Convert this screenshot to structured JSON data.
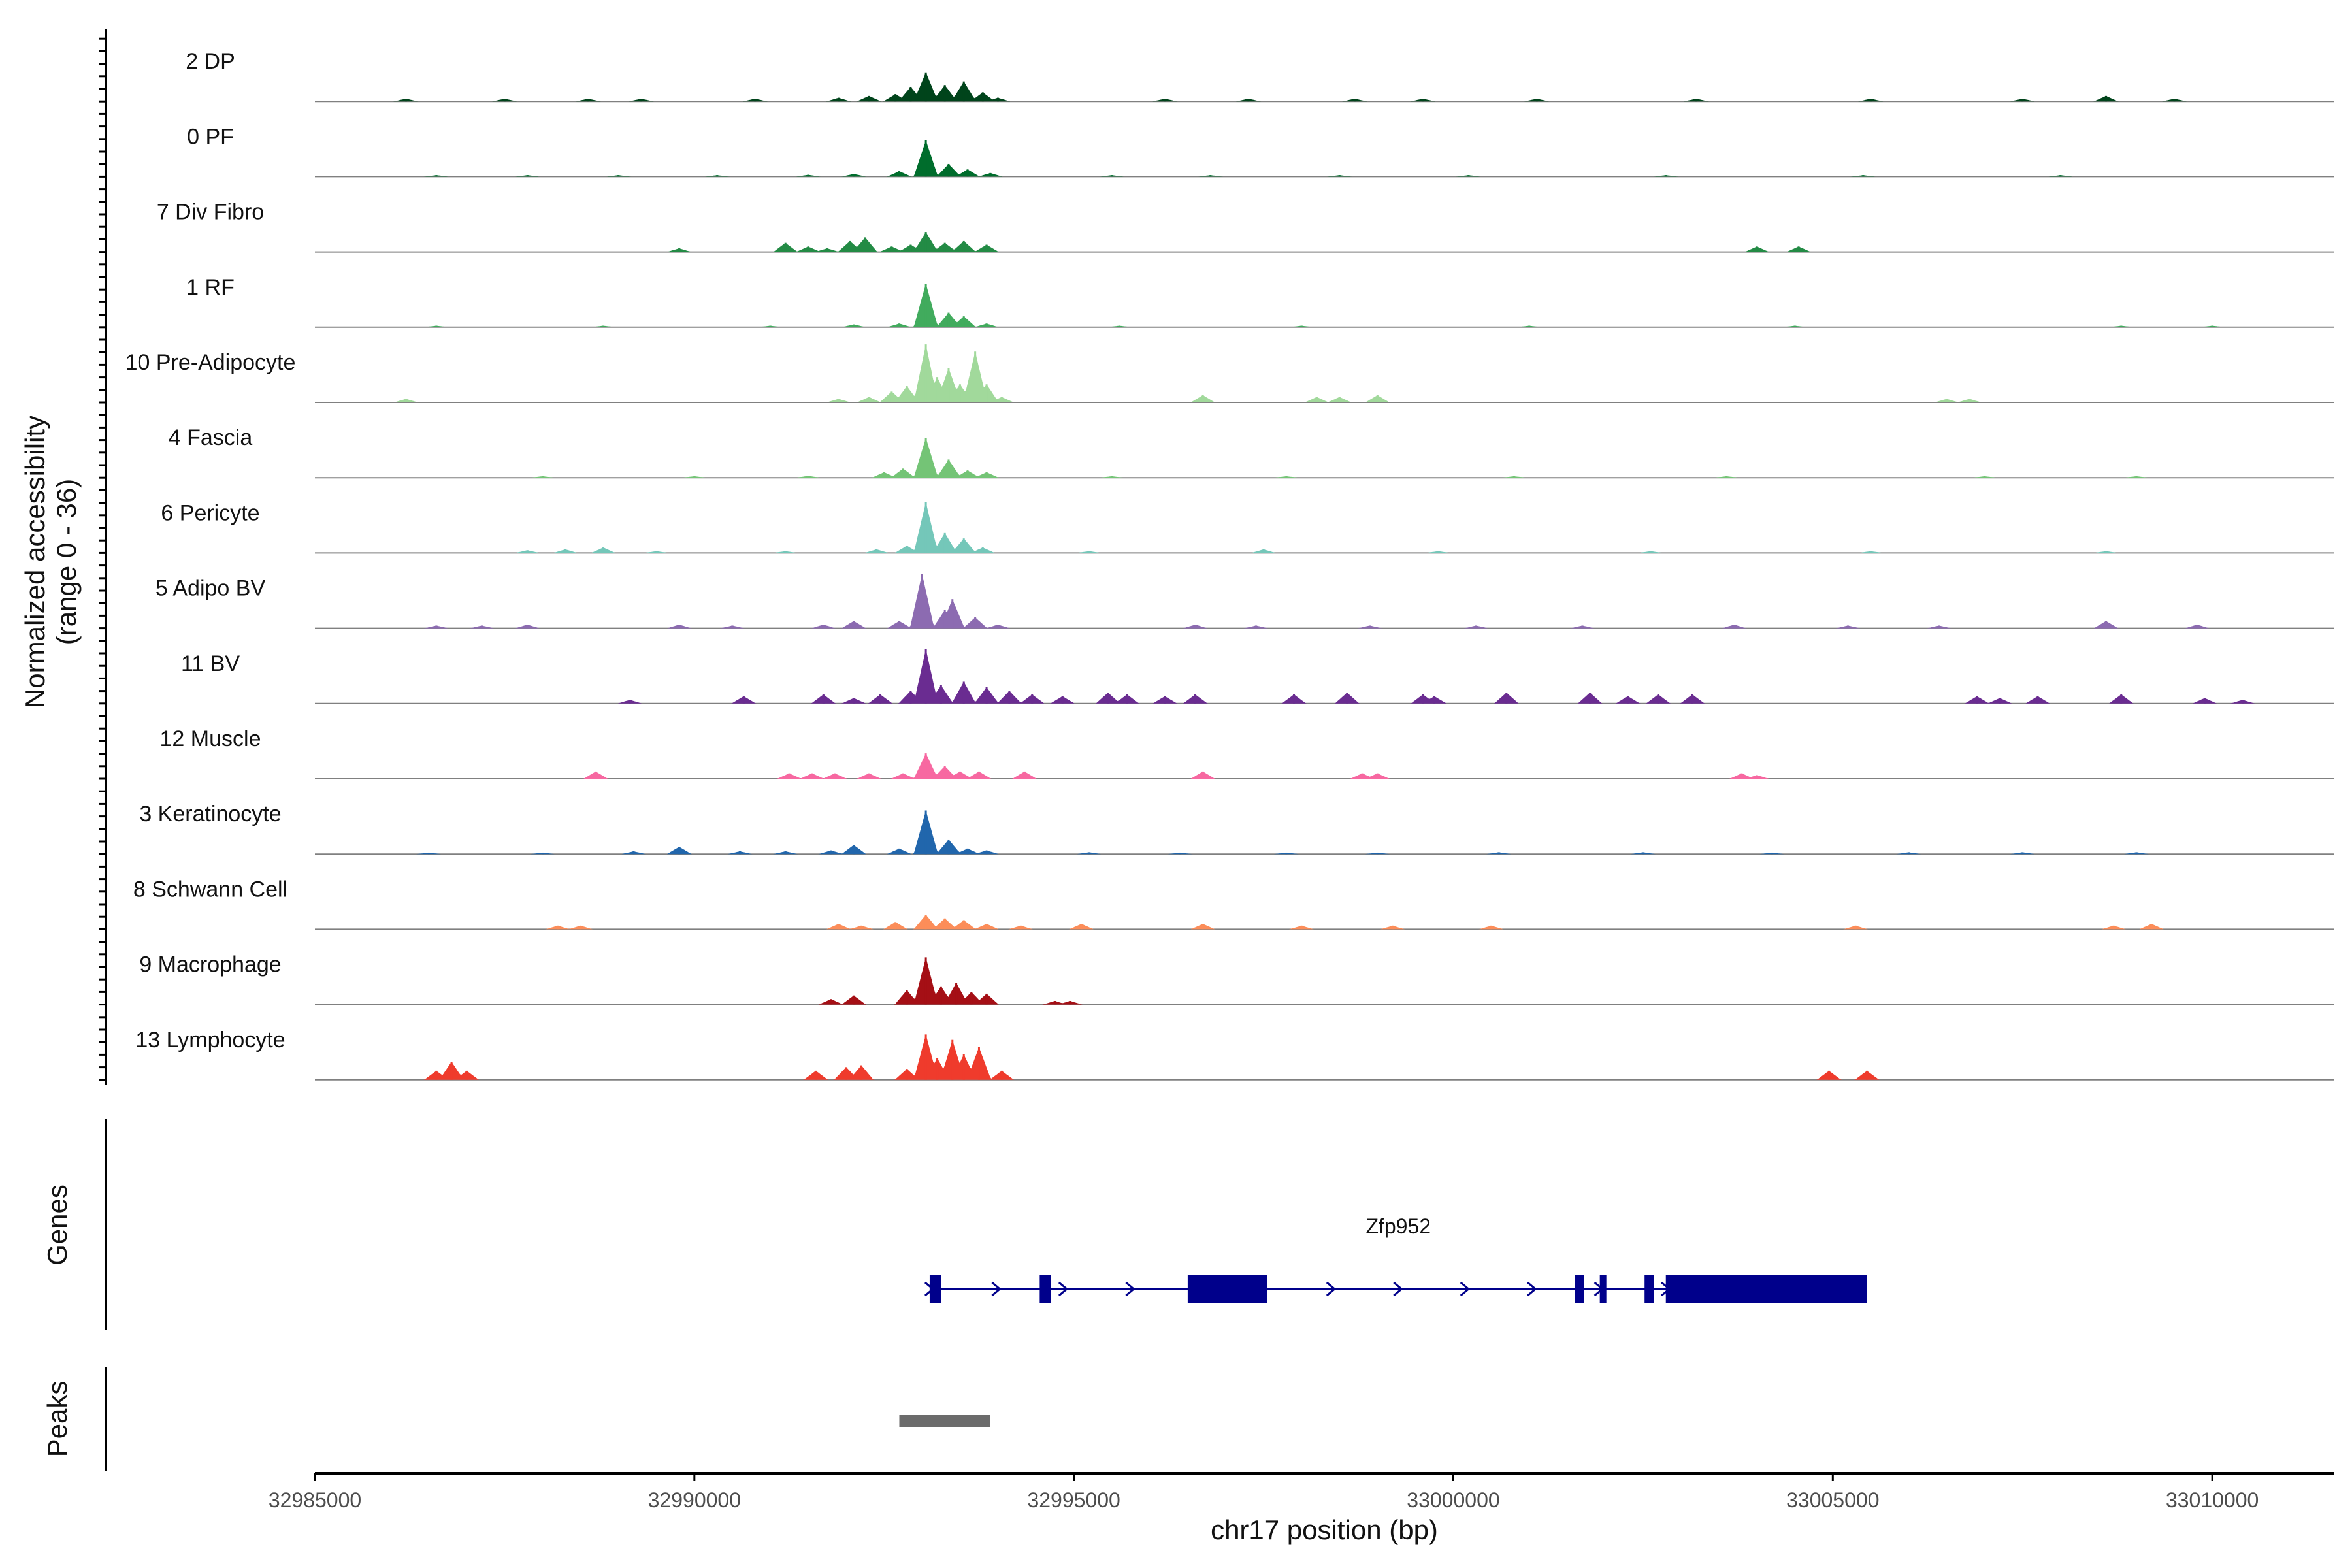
{
  "chart_data": {
    "type": "area",
    "title": "",
    "ylabel": "Normalized accessibility",
    "ylabel_range": "(range 0 - 36)",
    "xlabel": "chr17 position (bp)",
    "xlim": [
      32985000,
      33011600
    ],
    "ylim": [
      0,
      36
    ],
    "xticks": [
      32985000,
      32990000,
      32995000,
      33000000,
      33005000,
      33010000
    ],
    "xtick_labels": [
      "32985000",
      "32990000",
      "32995000",
      "33000000",
      "33005000",
      "33010000"
    ],
    "tracks": [
      {
        "name": "2 DP",
        "color": "#00441b",
        "peaks": [
          [
            32986200,
            1.5
          ],
          [
            32987500,
            1.5
          ],
          [
            32988600,
            1.5
          ],
          [
            32989300,
            1.5
          ],
          [
            32990800,
            1.5
          ],
          [
            32991900,
            2
          ],
          [
            32992300,
            3
          ],
          [
            32992650,
            4
          ],
          [
            32992850,
            8
          ],
          [
            32993050,
            16
          ],
          [
            32993300,
            9
          ],
          [
            32993550,
            11
          ],
          [
            32993800,
            5
          ],
          [
            32994000,
            2
          ],
          [
            32996200,
            1.5
          ],
          [
            32997300,
            1.5
          ],
          [
            32998700,
            1.5
          ],
          [
            32999600,
            1.5
          ],
          [
            33001100,
            1.5
          ],
          [
            33003200,
            1.5
          ],
          [
            33005500,
            1.5
          ],
          [
            33007500,
            1.5
          ],
          [
            33008600,
            3
          ],
          [
            33009500,
            1.5
          ]
        ]
      },
      {
        "name": "0 PF",
        "color": "#006d2c",
        "peaks": [
          [
            32986600,
            0.8
          ],
          [
            32987800,
            0.8
          ],
          [
            32989000,
            0.8
          ],
          [
            32990300,
            0.8
          ],
          [
            32991500,
            1
          ],
          [
            32992100,
            1.5
          ],
          [
            32992700,
            3
          ],
          [
            32993050,
            20
          ],
          [
            32993350,
            7
          ],
          [
            32993600,
            4
          ],
          [
            32993900,
            2
          ],
          [
            32995500,
            0.8
          ],
          [
            32996800,
            0.8
          ],
          [
            32998500,
            0.8
          ],
          [
            33000200,
            0.8
          ],
          [
            33002800,
            0.8
          ],
          [
            33005400,
            0.8
          ],
          [
            33008000,
            0.8
          ]
        ]
      },
      {
        "name": "7 Div Fibro",
        "color": "#238b45",
        "peaks": [
          [
            32989800,
            2
          ],
          [
            32991200,
            5
          ],
          [
            32991500,
            3
          ],
          [
            32991750,
            2
          ],
          [
            32992050,
            6
          ],
          [
            32992250,
            8
          ],
          [
            32992600,
            3
          ],
          [
            32992850,
            4
          ],
          [
            32993050,
            11
          ],
          [
            32993300,
            5
          ],
          [
            32993550,
            6
          ],
          [
            32993850,
            4
          ],
          [
            33004000,
            3
          ],
          [
            33004550,
            3
          ]
        ]
      },
      {
        "name": "1 RF",
        "color": "#41ab5d",
        "peaks": [
          [
            32986600,
            0.8
          ],
          [
            32988800,
            0.8
          ],
          [
            32991000,
            0.8
          ],
          [
            32992100,
            1.5
          ],
          [
            32992700,
            2
          ],
          [
            32993050,
            24
          ],
          [
            32993350,
            8
          ],
          [
            32993550,
            6
          ],
          [
            32993850,
            2
          ],
          [
            32995600,
            0.8
          ],
          [
            32998000,
            0.8
          ],
          [
            33001000,
            0.8
          ],
          [
            33004500,
            0.8
          ],
          [
            33008800,
            0.8
          ],
          [
            33010000,
            0.8
          ]
        ]
      },
      {
        "name": "10 Pre-Adipocyte",
        "color": "#a1d99b",
        "peaks": [
          [
            32986200,
            2
          ],
          [
            32991900,
            2
          ],
          [
            32992300,
            3
          ],
          [
            32992600,
            6
          ],
          [
            32992800,
            9
          ],
          [
            32992950,
            5
          ],
          [
            32993050,
            32
          ],
          [
            32993200,
            14
          ],
          [
            32993350,
            19
          ],
          [
            32993500,
            10
          ],
          [
            32993700,
            28
          ],
          [
            32993850,
            10
          ],
          [
            32994050,
            3
          ],
          [
            32996700,
            4
          ],
          [
            32998200,
            3
          ],
          [
            32998500,
            3
          ],
          [
            32999000,
            4
          ],
          [
            33006500,
            2
          ],
          [
            33006800,
            2
          ]
        ]
      },
      {
        "name": "4 Fascia",
        "color": "#74c476",
        "peaks": [
          [
            32988000,
            0.8
          ],
          [
            32990000,
            0.8
          ],
          [
            32991500,
            1
          ],
          [
            32992500,
            3
          ],
          [
            32992750,
            5
          ],
          [
            32993050,
            22
          ],
          [
            32993350,
            10
          ],
          [
            32993600,
            4
          ],
          [
            32993850,
            3
          ],
          [
            32995500,
            0.8
          ],
          [
            32997800,
            0.8
          ],
          [
            33000800,
            0.8
          ],
          [
            33003600,
            0.8
          ],
          [
            33007000,
            0.8
          ],
          [
            33009000,
            0.8
          ]
        ]
      },
      {
        "name": "6 Pericyte",
        "color": "#74c7b9",
        "peaks": [
          [
            32987800,
            1.5
          ],
          [
            32988300,
            2
          ],
          [
            32988800,
            3
          ],
          [
            32989500,
            1
          ],
          [
            32991200,
            1
          ],
          [
            32992400,
            2
          ],
          [
            32992800,
            4
          ],
          [
            32993050,
            28
          ],
          [
            32993300,
            11
          ],
          [
            32993550,
            8
          ],
          [
            32993800,
            3
          ],
          [
            32995200,
            1
          ],
          [
            32997500,
            2
          ],
          [
            32999800,
            1
          ],
          [
            33002600,
            1
          ],
          [
            33005500,
            1
          ],
          [
            33008600,
            1
          ]
        ]
      },
      {
        "name": "5 Adipo BV",
        "color": "#8c6bb1",
        "peaks": [
          [
            32986600,
            1.5
          ],
          [
            32987200,
            1.5
          ],
          [
            32987800,
            2
          ],
          [
            32989800,
            2
          ],
          [
            32990500,
            1.5
          ],
          [
            32991700,
            2
          ],
          [
            32992100,
            4
          ],
          [
            32992700,
            4
          ],
          [
            32993000,
            30
          ],
          [
            32993300,
            10
          ],
          [
            32993400,
            16
          ],
          [
            32993700,
            6
          ],
          [
            32994000,
            2
          ],
          [
            32996600,
            2
          ],
          [
            32997400,
            1.5
          ],
          [
            32998900,
            1.5
          ],
          [
            33000300,
            1.5
          ],
          [
            33001700,
            1.5
          ],
          [
            33003700,
            2
          ],
          [
            33005200,
            1.5
          ],
          [
            33006400,
            1.5
          ],
          [
            33008600,
            4
          ],
          [
            33009800,
            2
          ]
        ]
      },
      {
        "name": "11 BV",
        "color": "#6a2c91",
        "peaks": [
          [
            32989150,
            2
          ],
          [
            32990650,
            4
          ],
          [
            32991700,
            5
          ],
          [
            32992100,
            3
          ],
          [
            32992450,
            5
          ],
          [
            32992850,
            7
          ],
          [
            32993050,
            30
          ],
          [
            32993250,
            10
          ],
          [
            32993550,
            12
          ],
          [
            32993850,
            9
          ],
          [
            32994150,
            7
          ],
          [
            32994450,
            5
          ],
          [
            32994850,
            4
          ],
          [
            32995450,
            6
          ],
          [
            32995700,
            5
          ],
          [
            32996200,
            4
          ],
          [
            32996600,
            5
          ],
          [
            32997900,
            5
          ],
          [
            32998600,
            6
          ],
          [
            32999600,
            5
          ],
          [
            32999750,
            4
          ],
          [
            33000700,
            6
          ],
          [
            33001800,
            6
          ],
          [
            33002300,
            4
          ],
          [
            33002700,
            5
          ],
          [
            33003150,
            5
          ],
          [
            33006900,
            4
          ],
          [
            33007200,
            3
          ],
          [
            33007700,
            4
          ],
          [
            33008800,
            5
          ],
          [
            33009900,
            3
          ],
          [
            33010400,
            2
          ]
        ]
      },
      {
        "name": "12 Muscle",
        "color": "#f768a1",
        "peaks": [
          [
            32988700,
            4
          ],
          [
            32991250,
            3
          ],
          [
            32991550,
            3
          ],
          [
            32991850,
            3
          ],
          [
            32992300,
            3
          ],
          [
            32992750,
            3
          ],
          [
            32993050,
            14
          ],
          [
            32993300,
            7
          ],
          [
            32993500,
            4
          ],
          [
            32993750,
            4
          ],
          [
            32994350,
            4
          ],
          [
            32996700,
            4
          ],
          [
            32998800,
            3
          ],
          [
            32999000,
            3
          ],
          [
            33003800,
            3
          ],
          [
            33004000,
            2
          ]
        ]
      },
      {
        "name": "3 Keratinocyte",
        "color": "#2166ac",
        "peaks": [
          [
            32986500,
            0.8
          ],
          [
            32988000,
            0.8
          ],
          [
            32989200,
            1.5
          ],
          [
            32989800,
            4
          ],
          [
            32990600,
            1.5
          ],
          [
            32991200,
            1.5
          ],
          [
            32991800,
            2
          ],
          [
            32992100,
            5
          ],
          [
            32992700,
            3
          ],
          [
            32993050,
            24
          ],
          [
            32993350,
            8
          ],
          [
            32993600,
            3
          ],
          [
            32993850,
            2
          ],
          [
            32995200,
            1
          ],
          [
            32996400,
            0.8
          ],
          [
            32997800,
            0.8
          ],
          [
            32999000,
            0.8
          ],
          [
            33000600,
            1
          ],
          [
            33002500,
            1
          ],
          [
            33004200,
            0.8
          ],
          [
            33006000,
            1
          ],
          [
            33007500,
            1
          ],
          [
            33009000,
            1
          ]
        ]
      },
      {
        "name": "8 Schwann Cell",
        "color": "#fc8d59",
        "peaks": [
          [
            32988200,
            2
          ],
          [
            32988500,
            2
          ],
          [
            32991900,
            3
          ],
          [
            32992200,
            2
          ],
          [
            32992650,
            4
          ],
          [
            32993050,
            8
          ],
          [
            32993300,
            6
          ],
          [
            32993550,
            5
          ],
          [
            32993850,
            3
          ],
          [
            32994300,
            2
          ],
          [
            32995100,
            3
          ],
          [
            32996700,
            3
          ],
          [
            32998000,
            2
          ],
          [
            32999200,
            2
          ],
          [
            33000500,
            2
          ],
          [
            33005300,
            2
          ],
          [
            33008700,
            2
          ],
          [
            33009200,
            3
          ]
        ]
      },
      {
        "name": "9 Macrophage",
        "color": "#a50f15",
        "peaks": [
          [
            32991800,
            3
          ],
          [
            32992100,
            5
          ],
          [
            32992800,
            8
          ],
          [
            32993050,
            26
          ],
          [
            32993250,
            10
          ],
          [
            32993450,
            12
          ],
          [
            32993650,
            7
          ],
          [
            32993850,
            6
          ],
          [
            32994750,
            2
          ],
          [
            32994950,
            2
          ]
        ]
      },
      {
        "name": "13 Lymphocyte",
        "color": "#ef3b2c",
        "peaks": [
          [
            32986600,
            5
          ],
          [
            32986800,
            10
          ],
          [
            32987000,
            5
          ],
          [
            32991600,
            5
          ],
          [
            32992000,
            7
          ],
          [
            32992200,
            8
          ],
          [
            32992800,
            6
          ],
          [
            32993050,
            25
          ],
          [
            32993200,
            12
          ],
          [
            32993400,
            22
          ],
          [
            32993550,
            14
          ],
          [
            32993750,
            18
          ],
          [
            32994050,
            5
          ],
          [
            33004950,
            5
          ],
          [
            33005450,
            5
          ]
        ]
      }
    ],
    "genes": [
      {
        "name": "Zfp952",
        "strand": "+",
        "start": 32993100,
        "end": 33005450,
        "exons": [
          [
            32993100,
            32993250
          ],
          [
            32994550,
            32994700
          ],
          [
            32996500,
            32997550
          ],
          [
            33001600,
            33001720
          ],
          [
            33001930,
            33002000
          ],
          [
            33002520,
            33002640
          ],
          [
            33002800,
            33005450
          ]
        ]
      }
    ],
    "peaks_track": [
      [
        32992700,
        32993900
      ]
    ],
    "panel_labels": {
      "genes": "Genes",
      "peaks": "Peaks"
    }
  }
}
